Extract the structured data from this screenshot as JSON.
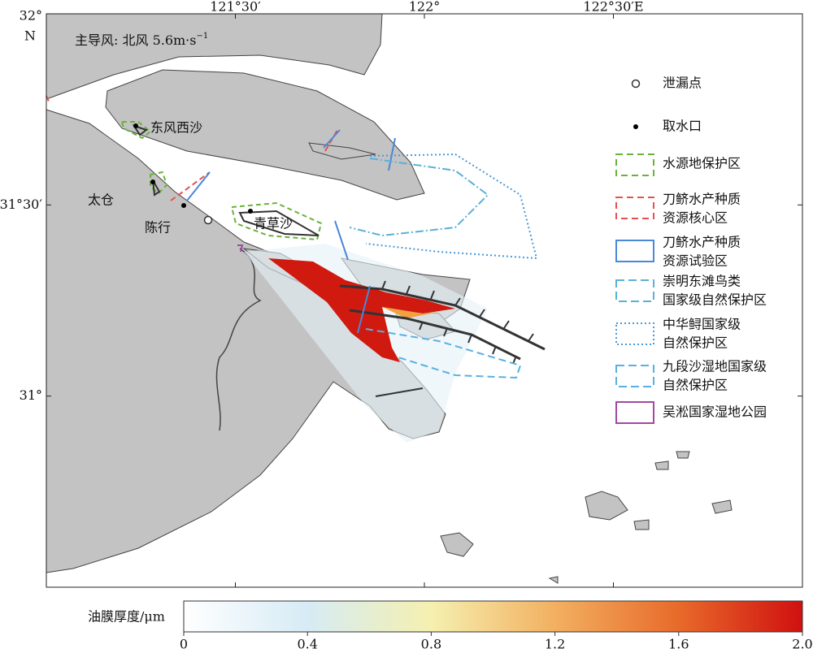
{
  "map": {
    "lonlim": [
      121,
      123
    ],
    "latlim": [
      30.5,
      32
    ],
    "lon_ticks": [
      {
        "value": 121.5,
        "label": "121°30′"
      },
      {
        "value": 122,
        "label": "122°"
      },
      {
        "value": 122.5,
        "label": "122°30′E"
      }
    ],
    "lat_ticks": [
      {
        "value": 32,
        "label": "32°"
      },
      {
        "value": 31.5,
        "label": "31°30′"
      },
      {
        "value": 31,
        "label": "31°"
      }
    ],
    "north_label": "N",
    "wind": {
      "text": "主导风: 北风 5.6m·s",
      "superscript": "−1"
    },
    "places": [
      "东风西沙",
      "太仓",
      "陈行",
      "青草沙"
    ],
    "legend": [
      [
        "泄漏点"
      ],
      [
        "取水口"
      ],
      [
        "水源地保护区"
      ],
      [
        "刀鲚水产种质",
        "资源核心区"
      ],
      [
        "刀鲚水产种质",
        "资源试验区"
      ],
      [
        "崇明东滩鸟类",
        "国家级自然保护区"
      ],
      [
        "中华鲟国家级",
        "自然保护区"
      ],
      [
        "九段沙湿地国家级",
        "自然保护区"
      ],
      [
        "吴淞国家湿地公园"
      ]
    ],
    "colorbar": {
      "label": "油膜厚度/μm",
      "lim": [
        0,
        2
      ],
      "ticks": [
        0,
        0.4,
        0.8,
        1.2,
        1.6,
        {
          "value": 2,
          "label": "2.0"
        }
      ],
      "colors": [
        "#ffffff",
        "#d6ebf5",
        "#f5f0b0",
        "#f2b060",
        "#e86a2a",
        "#d01010"
      ]
    }
  }
}
